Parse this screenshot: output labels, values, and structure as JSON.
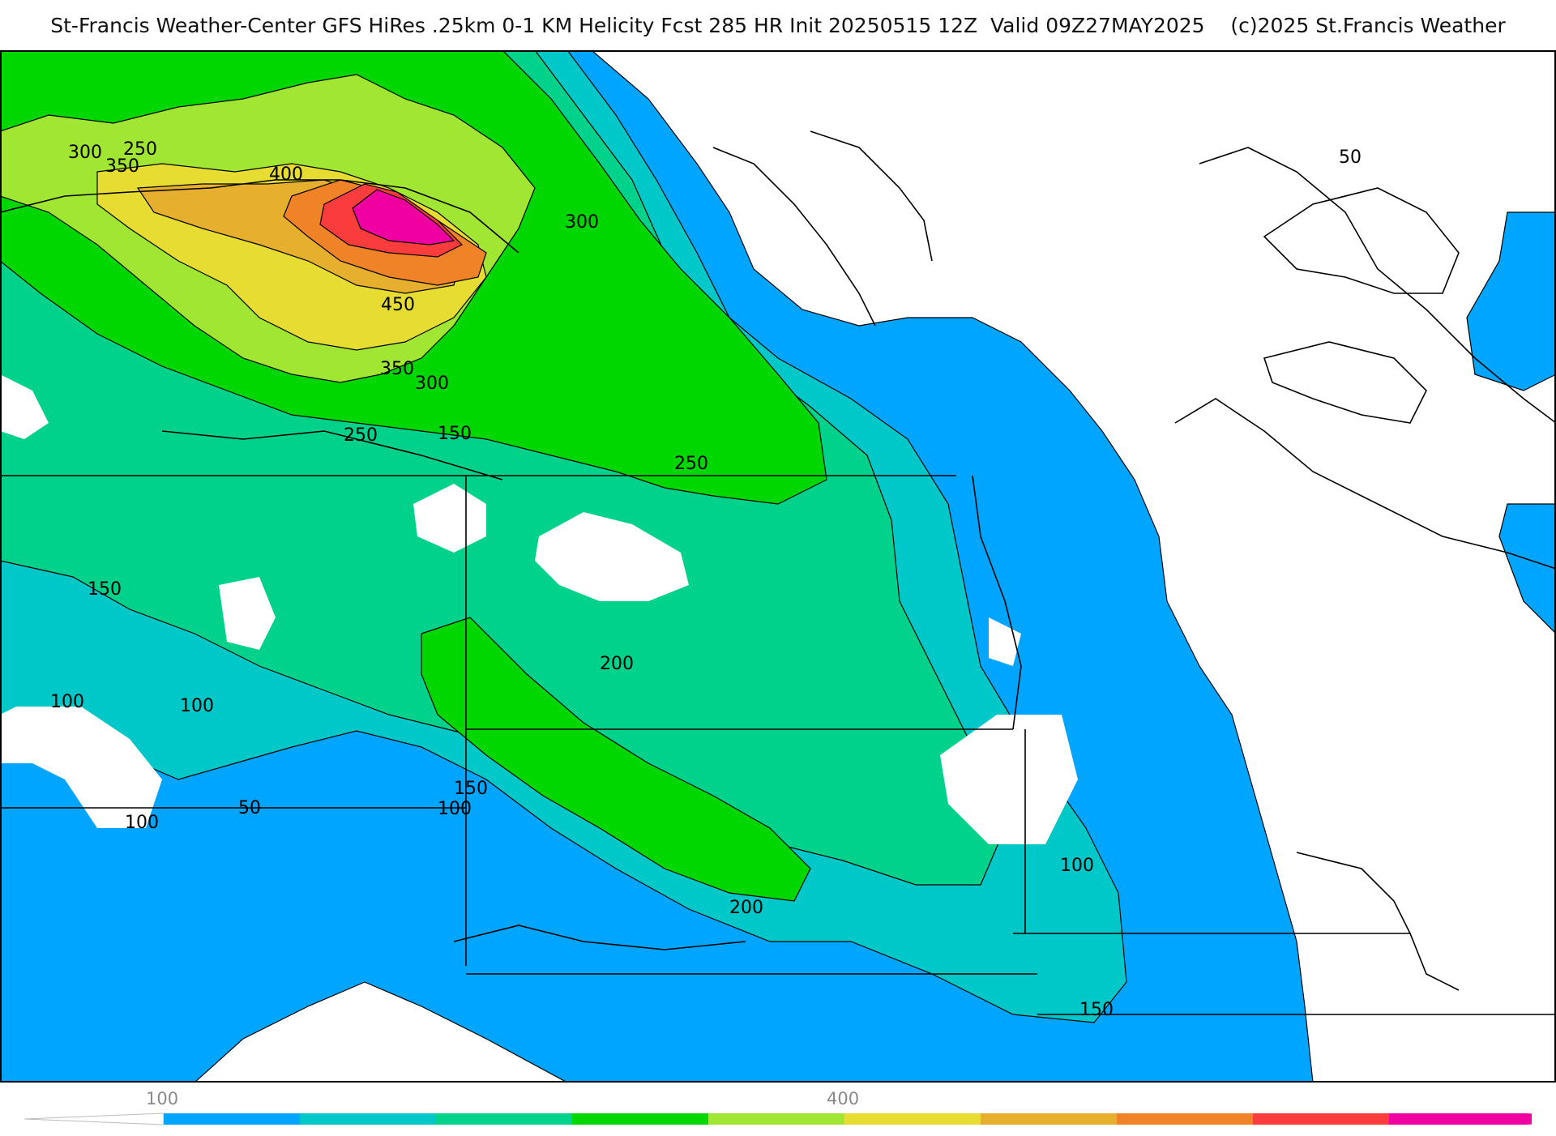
{
  "title": {
    "main": "St-Francis Weather-Center GFS HiRes .25km 0-1 KM Helicity Fcst 285 HR Init 20250515 12Z  Valid 09Z27MAY2025",
    "copyright": "(c)2025 St.Francis Weather"
  },
  "colors": {
    "band_50_100": "#00a5ff",
    "band_100_150": "#00c8c8",
    "band_150_200": "#00d28c",
    "band_200_250": "#00d700",
    "band_250_300": "#a0e632",
    "band_300_350": "#e6dc32",
    "band_350_400": "#e6af2d",
    "band_400_450": "#f08228",
    "band_450_500": "#fa3c3c",
    "band_500_plus": "#f000a0",
    "borders": "#000000"
  },
  "contour_labels": [
    {
      "id": "c300a",
      "text": "300"
    },
    {
      "id": "c250a",
      "text": "250"
    },
    {
      "id": "c350a",
      "text": "350"
    },
    {
      "id": "c400a",
      "text": "400"
    },
    {
      "id": "c300b",
      "text": "300"
    },
    {
      "id": "c450a",
      "text": "450"
    },
    {
      "id": "c350b",
      "text": "350"
    },
    {
      "id": "c300c",
      "text": "300"
    },
    {
      "id": "c250b",
      "text": "250"
    },
    {
      "id": "c150a",
      "text": "150"
    },
    {
      "id": "c250c",
      "text": "250"
    },
    {
      "id": "c50a",
      "text": "50"
    },
    {
      "id": "c150b",
      "text": "150"
    },
    {
      "id": "c100a",
      "text": "100"
    },
    {
      "id": "c100b",
      "text": "100"
    },
    {
      "id": "c200a",
      "text": "200"
    },
    {
      "id": "c150c",
      "text": "150"
    },
    {
      "id": "c100c",
      "text": "100"
    },
    {
      "id": "c50b",
      "text": "50"
    },
    {
      "id": "c100d",
      "text": "100"
    },
    {
      "id": "c100e",
      "text": "100"
    },
    {
      "id": "c200b",
      "text": "200"
    },
    {
      "id": "c150d",
      "text": "150"
    }
  ],
  "legend": {
    "tick_labels": [
      "100",
      "400"
    ],
    "colors": [
      "#00a5ff",
      "#00c8c8",
      "#00d28c",
      "#00d700",
      "#a0e632",
      "#e6dc32",
      "#e6af2d",
      "#f08228",
      "#fa3c3c",
      "#f000a0"
    ]
  }
}
